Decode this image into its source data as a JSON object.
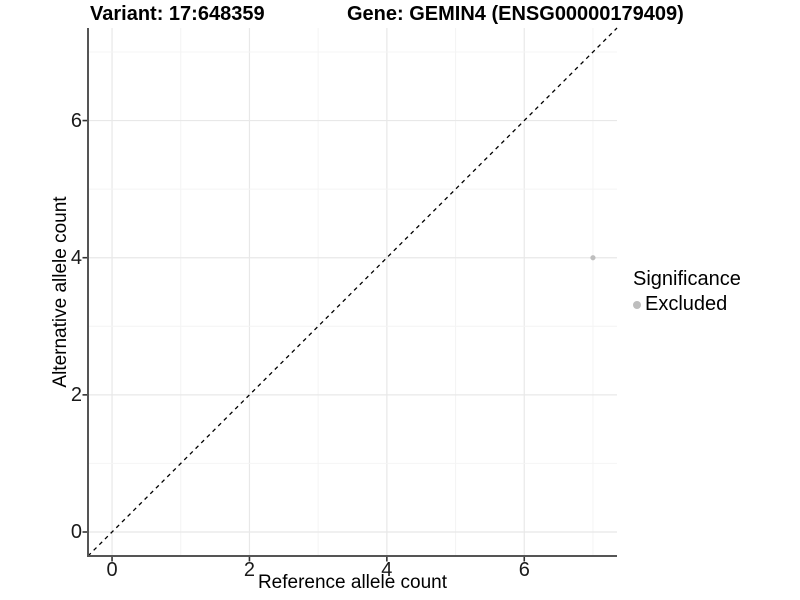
{
  "titles": {
    "variant": "Variant: 17:648359",
    "gene": "Gene: GEMIN4 (ENSG00000179409)"
  },
  "chart_data": {
    "type": "scatter",
    "title": "Variant: 17:648359    Gene: GEMIN4 (ENSG00000179409)",
    "xlabel": "Reference allele count",
    "ylabel": "Alternative allele count",
    "xlim": [
      -0.35,
      7.35
    ],
    "ylim": [
      -0.35,
      7.35
    ],
    "xticks": [
      0,
      2,
      4,
      6
    ],
    "yticks": [
      0,
      2,
      4,
      6
    ],
    "grid_interval": 1,
    "grid": true,
    "points": [
      {
        "x": 7,
        "y": 4,
        "series": "Excluded"
      }
    ],
    "reference_line": {
      "kind": "identity",
      "slope": 1,
      "intercept": 0,
      "style": "dashed"
    },
    "legend": {
      "title": "Significance",
      "position": "right",
      "entries": [
        {
          "label": "Excluded",
          "color": "#bebebe"
        }
      ]
    },
    "colors": {
      "point": "#bebebe",
      "grid_major": "#e8e8e8",
      "grid_minor": "#f4f4f4",
      "axis_line": "#555555",
      "tick_mark": "#333333",
      "reference_line": "#000000",
      "background": "#ffffff"
    }
  }
}
